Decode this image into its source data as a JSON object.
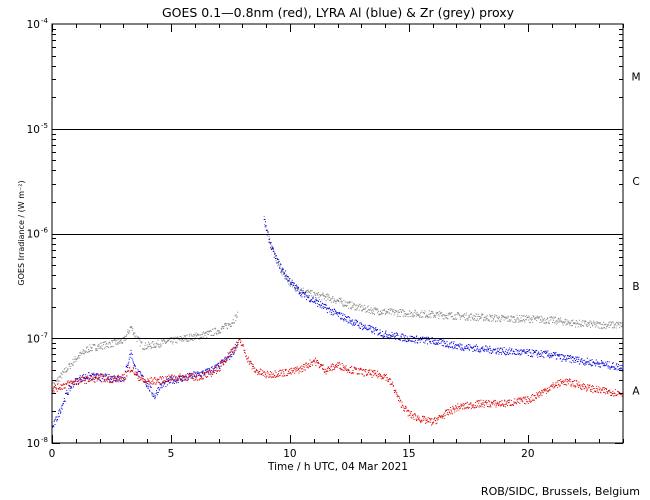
{
  "chart_data": {
    "type": "scatter",
    "title": "GOES 0.1—0.8nm (red), LYRA Al (blue) & Zr (grey) proxy",
    "xlabel": "Time / h UTC, 04 Mar 2021",
    "ylabel": "GOES Irradiance / (W m⁻²)",
    "credit": "ROB/SIDC, Brussels, Belgium",
    "x_range": [
      0,
      24
    ],
    "y_range": [
      1e-08,
      0.0001
    ],
    "y_scale": "log",
    "x_ticks": [
      0,
      5,
      10,
      15,
      20
    ],
    "x_tick_labels": [
      "0",
      "5",
      "10",
      "15",
      "20"
    ],
    "y_ticks": [
      1e-08,
      1e-07,
      1e-06,
      1e-05,
      0.0001
    ],
    "y_tick_labels": [
      {
        "base": "10",
        "exp": "-8"
      },
      {
        "base": "10",
        "exp": "-7"
      },
      {
        "base": "10",
        "exp": "-6"
      },
      {
        "base": "10",
        "exp": "-5"
      },
      {
        "base": "10",
        "exp": "-4"
      }
    ],
    "class_thresholds": [
      1e-07,
      1e-06,
      1e-05
    ],
    "flare_classes": [
      {
        "label": "A",
        "center": 3.16e-08
      },
      {
        "label": "B",
        "center": 3.16e-07
      },
      {
        "label": "C",
        "center": 3.16e-06
      },
      {
        "label": "M",
        "center": 3.16e-05
      }
    ],
    "series": [
      {
        "color": "#888888",
        "segments": [
          {
            "x": [
              0,
              0.5,
              1.0,
              1.5,
              2.0,
              2.5,
              3.0,
              3.3,
              3.5,
              3.8,
              4.0,
              4.5,
              5.0,
              5.5,
              6.0,
              6.5,
              7.0,
              7.5,
              7.8
            ],
            "y": [
              3.5e-08,
              4.8e-08,
              6.5e-08,
              8e-08,
              8.5e-08,
              9e-08,
              9.5e-08,
              1.3e-07,
              1.05e-07,
              8.5e-08,
              8.5e-08,
              9e-08,
              9.5e-08,
              1e-07,
              1.05e-07,
              1.1e-07,
              1.2e-07,
              1.4e-07,
              1.7e-07
            ]
          },
          {
            "x": [
              8.9,
              9.0,
              9.2,
              9.5,
              9.8,
              10.0,
              10.5,
              11.0,
              11.5,
              12.0,
              12.5,
              13.0,
              13.5,
              14.0,
              15.0,
              16.0,
              17.0,
              18.0,
              19.0,
              20.0,
              21.0,
              21.5,
              22.0,
              23.0,
              24.0
            ],
            "y": [
              1.4e-06,
              1.1e-06,
              7.5e-07,
              5e-07,
              3.8e-07,
              3.3e-07,
              2.9e-07,
              2.6e-07,
              2.5e-07,
              2.3e-07,
              2.1e-07,
              1.95e-07,
              1.85e-07,
              1.8e-07,
              1.75e-07,
              1.7e-07,
              1.65e-07,
              1.6e-07,
              1.55e-07,
              1.55e-07,
              1.5e-07,
              1.45e-07,
              1.4e-07,
              1.35e-07,
              1.35e-07
            ]
          }
        ]
      },
      {
        "color": "#0000dd",
        "segments": [
          {
            "x": [
              0,
              0.3,
              0.6,
              0.9,
              1.2,
              1.5,
              2.0,
              2.5,
              3.0,
              3.3,
              3.5,
              3.8,
              4.0,
              4.3,
              4.5,
              5.0,
              5.5,
              6.0,
              6.5,
              7.0,
              7.5,
              7.8
            ],
            "y": [
              1.4e-08,
              2e-08,
              3e-08,
              3.8e-08,
              4.2e-08,
              4.4e-08,
              4.3e-08,
              4.2e-08,
              4.2e-08,
              7.5e-08,
              5e-08,
              4.2e-08,
              3.6e-08,
              2.8e-08,
              3.5e-08,
              4e-08,
              4.2e-08,
              4.5e-08,
              4.8e-08,
              5.5e-08,
              7e-08,
              9e-08
            ]
          },
          {
            "x": [
              8.9,
              9.1,
              9.3,
              9.6,
              9.9,
              10.2,
              10.5,
              11.0,
              11.5,
              12.0,
              12.5,
              13.0,
              13.5,
              14.0,
              14.5,
              15.0,
              16.0,
              17.0,
              18.0,
              19.0,
              20.0,
              21.0,
              21.5,
              22.0,
              22.5,
              23.0,
              23.5,
              24.0
            ],
            "y": [
              1.35e-06,
              9e-07,
              6.5e-07,
              4.8e-07,
              3.8e-07,
              3.1e-07,
              2.7e-07,
              2.3e-07,
              1.95e-07,
              1.7e-07,
              1.5e-07,
              1.32e-07,
              1.2e-07,
              1.1e-07,
              1.05e-07,
              1e-07,
              9.5e-08,
              8.5e-08,
              8e-08,
              7.6e-08,
              7.3e-08,
              7e-08,
              6.5e-08,
              6.3e-08,
              6e-08,
              5.8e-08,
              5.5e-08,
              5.3e-08
            ]
          }
        ]
      },
      {
        "color": "#dd0000",
        "segments": [
          {
            "x": [
              0,
              0.5,
              1.0,
              1.5,
              2.0,
              2.5,
              3.0,
              3.3,
              3.5,
              3.8,
              4.0,
              4.5,
              5.0,
              5.5,
              6.0,
              6.5,
              7.0,
              7.5,
              7.9,
              8.2,
              8.5,
              9.0,
              9.5,
              10.0,
              10.5,
              11.0,
              11.5,
              12.0,
              12.5,
              13.0,
              13.5,
              14.0,
              14.3,
              14.6,
              15.0,
              15.5,
              16.0,
              16.5,
              17.0,
              17.5,
              18.0,
              18.5,
              19.0,
              19.5,
              20.0,
              20.5,
              21.0,
              21.5,
              22.0,
              22.5,
              23.0,
              23.5,
              24.0
            ],
            "y": [
              3.3e-08,
              3.6e-08,
              3.9e-08,
              4.1e-08,
              4.2e-08,
              4.1e-08,
              4.2e-08,
              5.3e-08,
              4.6e-08,
              4e-08,
              3.9e-08,
              4e-08,
              4.2e-08,
              4.3e-08,
              4.3e-08,
              4.5e-08,
              5.2e-08,
              7.5e-08,
              9.5e-08,
              6.5e-08,
              5e-08,
              4.5e-08,
              4.7e-08,
              4.8e-08,
              5.2e-08,
              6.2e-08,
              5e-08,
              5.6e-08,
              5.1e-08,
              4.8e-08,
              4.6e-08,
              4.4e-08,
              3.6e-08,
              2.5e-08,
              1.9e-08,
              1.7e-08,
              1.6e-08,
              1.9e-08,
              2.2e-08,
              2.3e-08,
              2.4e-08,
              2.4e-08,
              2.4e-08,
              2.5e-08,
              2.6e-08,
              3e-08,
              3.5e-08,
              3.9e-08,
              3.7e-08,
              3.4e-08,
              3.2e-08,
              3.1e-08,
              3e-08
            ]
          }
        ]
      }
    ]
  }
}
